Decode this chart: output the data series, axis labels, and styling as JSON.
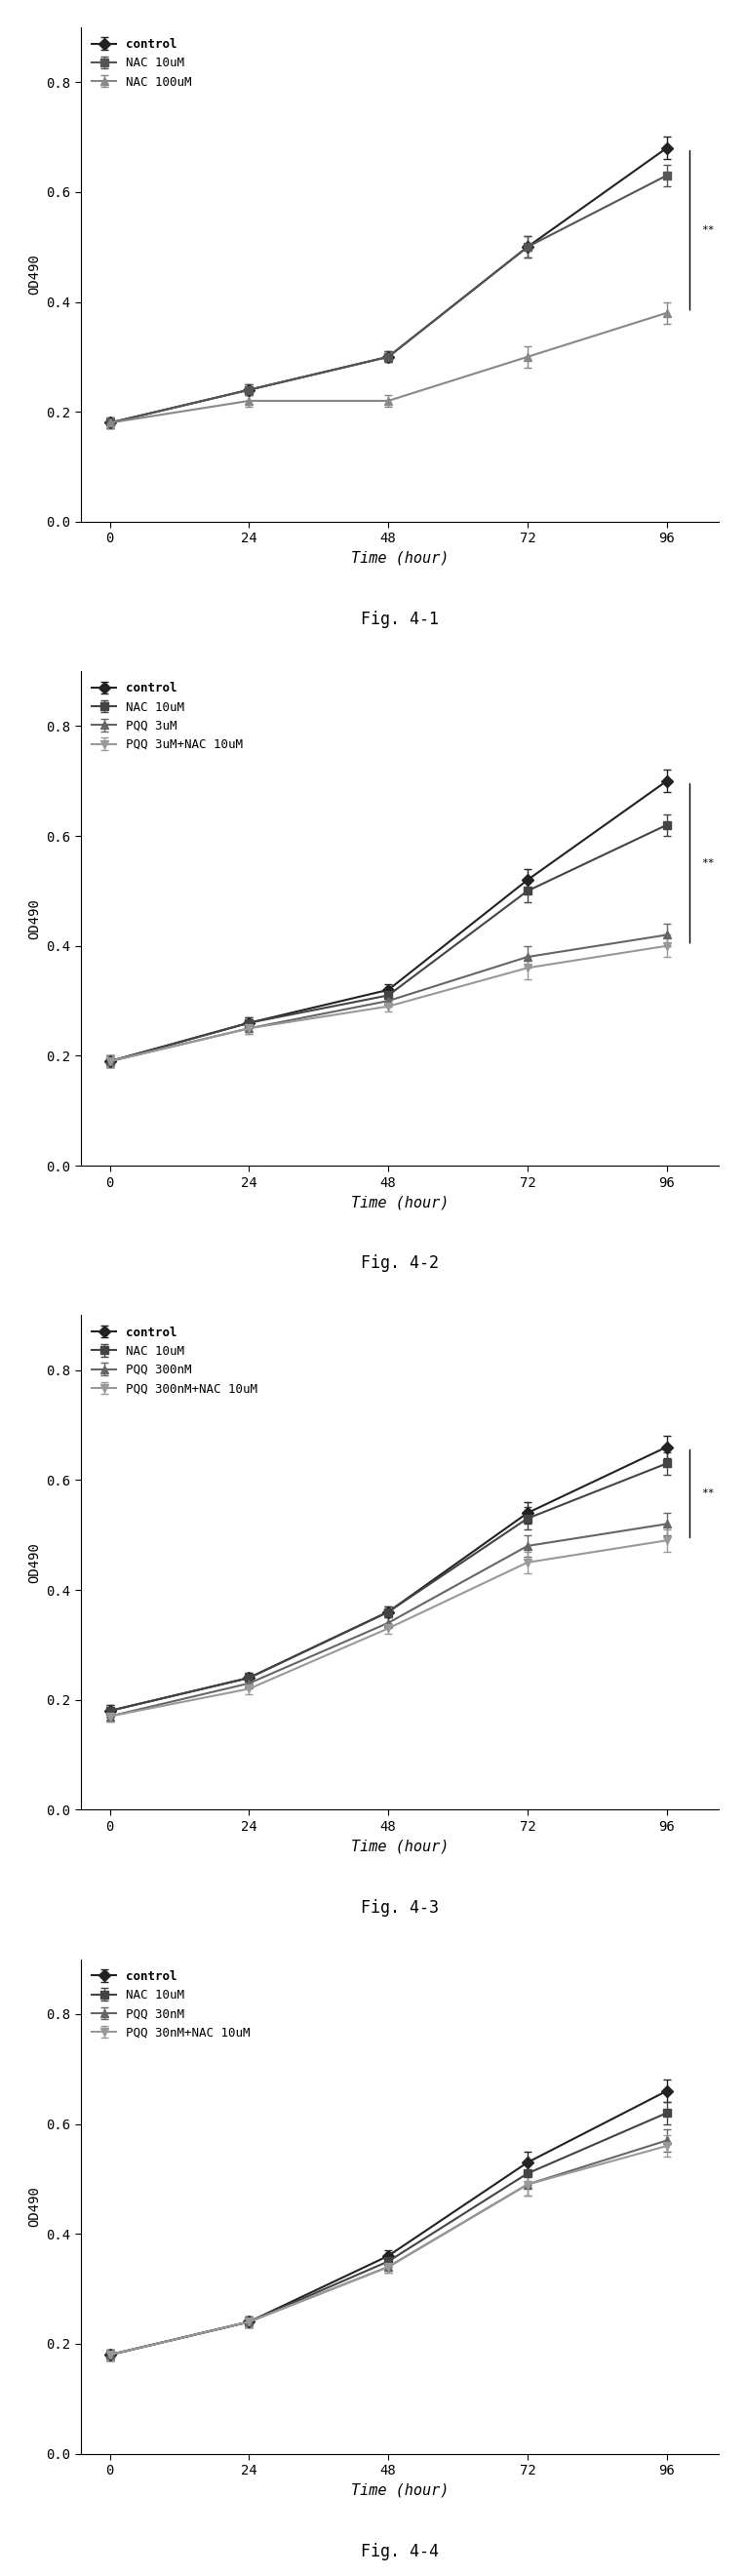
{
  "x": [
    0,
    24,
    48,
    72,
    96
  ],
  "fig1": {
    "title": "Fig. 4-1",
    "ylabel": "OD490",
    "xlabel": "Time (hour)",
    "series": [
      {
        "label": "control",
        "y": [
          0.18,
          0.24,
          0.3,
          0.5,
          0.68
        ],
        "yerr": [
          0.01,
          0.01,
          0.01,
          0.02,
          0.02
        ],
        "marker": "D",
        "color": "#222222",
        "linestyle": "-"
      },
      {
        "label": "NAC 10uM",
        "y": [
          0.18,
          0.24,
          0.3,
          0.5,
          0.63
        ],
        "yerr": [
          0.01,
          0.01,
          0.01,
          0.02,
          0.02
        ],
        "marker": "s",
        "color": "#555555",
        "linestyle": "-"
      },
      {
        "label": "NAC 100uM",
        "y": [
          0.18,
          0.22,
          0.22,
          0.3,
          0.38
        ],
        "yerr": [
          0.01,
          0.01,
          0.01,
          0.02,
          0.02
        ],
        "marker": "^",
        "color": "#888888",
        "linestyle": "-"
      }
    ],
    "ylim": [
      0.0,
      0.9
    ],
    "yticks": [
      0.0,
      0.2,
      0.4,
      0.6,
      0.8
    ],
    "annotations": [
      "**",
      "*"
    ]
  },
  "fig2": {
    "title": "Fig. 4-2",
    "ylabel": "OD490",
    "xlabel": "Time (hour)",
    "series": [
      {
        "label": "control",
        "y": [
          0.19,
          0.26,
          0.32,
          0.52,
          0.7
        ],
        "yerr": [
          0.01,
          0.01,
          0.01,
          0.02,
          0.02
        ],
        "marker": "D",
        "color": "#222222",
        "linestyle": "-"
      },
      {
        "label": "NAC 10uM",
        "y": [
          0.19,
          0.26,
          0.31,
          0.5,
          0.62
        ],
        "yerr": [
          0.01,
          0.01,
          0.01,
          0.02,
          0.02
        ],
        "marker": "s",
        "color": "#444444",
        "linestyle": "-"
      },
      {
        "label": "PQQ 3uM",
        "y": [
          0.19,
          0.25,
          0.3,
          0.38,
          0.42
        ],
        "yerr": [
          0.01,
          0.01,
          0.01,
          0.02,
          0.02
        ],
        "marker": "^",
        "color": "#666666",
        "linestyle": "-"
      },
      {
        "label": "PQQ 3uM+NAC 10uM",
        "y": [
          0.19,
          0.25,
          0.29,
          0.36,
          0.4
        ],
        "yerr": [
          0.01,
          0.01,
          0.01,
          0.02,
          0.02
        ],
        "marker": "v",
        "color": "#999999",
        "linestyle": "-"
      }
    ],
    "ylim": [
      0.0,
      0.9
    ],
    "yticks": [
      0.0,
      0.2,
      0.4,
      0.6,
      0.8
    ],
    "annotations": [
      "**",
      "*"
    ]
  },
  "fig3": {
    "title": "Fig. 4-3",
    "ylabel": "OD490",
    "xlabel": "Time (hour)",
    "series": [
      {
        "label": "control",
        "y": [
          0.18,
          0.24,
          0.36,
          0.54,
          0.66
        ],
        "yerr": [
          0.01,
          0.01,
          0.01,
          0.02,
          0.02
        ],
        "marker": "D",
        "color": "#222222",
        "linestyle": "-"
      },
      {
        "label": "NAC 10uM",
        "y": [
          0.18,
          0.24,
          0.36,
          0.53,
          0.63
        ],
        "yerr": [
          0.01,
          0.01,
          0.01,
          0.02,
          0.02
        ],
        "marker": "s",
        "color": "#444444",
        "linestyle": "-"
      },
      {
        "label": "PQQ 300nM",
        "y": [
          0.17,
          0.23,
          0.34,
          0.48,
          0.52
        ],
        "yerr": [
          0.01,
          0.01,
          0.01,
          0.02,
          0.02
        ],
        "marker": "^",
        "color": "#666666",
        "linestyle": "-"
      },
      {
        "label": "PQQ 300nM+NAC 10uM",
        "y": [
          0.17,
          0.22,
          0.33,
          0.45,
          0.49
        ],
        "yerr": [
          0.01,
          0.01,
          0.01,
          0.02,
          0.02
        ],
        "marker": "v",
        "color": "#999999",
        "linestyle": "-"
      }
    ],
    "ylim": [
      0.0,
      0.9
    ],
    "yticks": [
      0.0,
      0.2,
      0.4,
      0.6,
      0.8
    ],
    "annotations": [
      "**",
      "*"
    ]
  },
  "fig4": {
    "title": "Fig. 4-4",
    "ylabel": "OD490",
    "xlabel": "Time (hour)",
    "series": [
      {
        "label": "control",
        "y": [
          0.18,
          0.24,
          0.36,
          0.53,
          0.66
        ],
        "yerr": [
          0.01,
          0.01,
          0.01,
          0.02,
          0.02
        ],
        "marker": "D",
        "color": "#222222",
        "linestyle": "-"
      },
      {
        "label": "NAC 10uM",
        "y": [
          0.18,
          0.24,
          0.35,
          0.51,
          0.62
        ],
        "yerr": [
          0.01,
          0.01,
          0.01,
          0.02,
          0.02
        ],
        "marker": "s",
        "color": "#444444",
        "linestyle": "-"
      },
      {
        "label": "PQQ 30nM",
        "y": [
          0.18,
          0.24,
          0.34,
          0.49,
          0.57
        ],
        "yerr": [
          0.01,
          0.01,
          0.01,
          0.02,
          0.02
        ],
        "marker": "^",
        "color": "#666666",
        "linestyle": "-"
      },
      {
        "label": "PQQ 30nM+NAC 10uM",
        "y": [
          0.18,
          0.24,
          0.34,
          0.49,
          0.56
        ],
        "yerr": [
          0.01,
          0.01,
          0.01,
          0.02,
          0.02
        ],
        "marker": "v",
        "color": "#999999",
        "linestyle": "-"
      }
    ],
    "ylim": [
      0.0,
      0.9
    ],
    "yticks": [
      0.0,
      0.2,
      0.4,
      0.6,
      0.8
    ],
    "annotations": []
  },
  "xticks": [
    0,
    24,
    48,
    72,
    96
  ],
  "background_color": "#ffffff",
  "legend_fontsize": 9,
  "axis_fontsize": 10,
  "title_fontsize": 12,
  "marker_size": 6,
  "linewidth": 1.5
}
